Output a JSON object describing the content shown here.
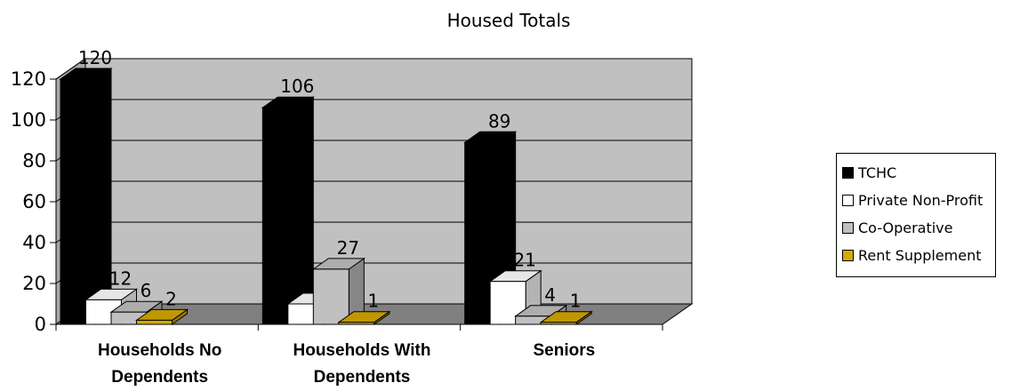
{
  "chart_data": {
    "type": "bar",
    "title": "Housed Totals",
    "categories": [
      "Households No Dependents",
      "Households With Dependents",
      "Seniors"
    ],
    "category_lines": [
      [
        "Households No",
        "Dependents"
      ],
      [
        "Households With",
        "Dependents"
      ],
      [
        "Seniors"
      ]
    ],
    "series": [
      {
        "name": "TCHC",
        "values": [
          120,
          106,
          89
        ],
        "color": "#000000"
      },
      {
        "name": "Private Non-Profit",
        "values": [
          12,
          10,
          21
        ],
        "color": "#ffffff"
      },
      {
        "name": "Co-Operative",
        "values": [
          6,
          27,
          4
        ],
        "color": "#c0c0c0"
      },
      {
        "name": "Rent Supplement",
        "values": [
          2,
          1,
          1
        ],
        "color": "#d4a900"
      }
    ],
    "ylim": [
      0,
      120
    ],
    "yticks": [
      0,
      20,
      40,
      60,
      80,
      100,
      120
    ],
    "grid": true,
    "legend": "right",
    "style": "3d-column"
  }
}
